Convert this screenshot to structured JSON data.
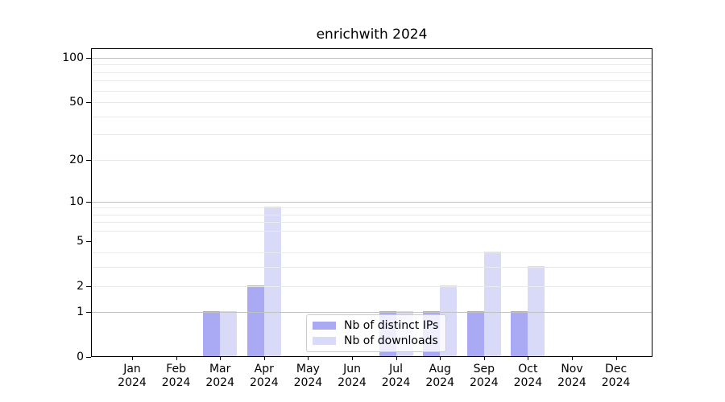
{
  "chart_data": {
    "type": "bar",
    "title": "enrichwith 2024",
    "categories": [
      "Jan 2024",
      "Feb 2024",
      "Mar 2024",
      "Apr 2024",
      "May 2024",
      "Jun 2024",
      "Jul 2024",
      "Aug 2024",
      "Sep 2024",
      "Oct 2024",
      "Nov 2024",
      "Dec 2024"
    ],
    "series": [
      {
        "name": "Nb of distinct IPs",
        "color": "#a9a9f4",
        "values": [
          0,
          0,
          1,
          2,
          0,
          0,
          1,
          1,
          1,
          1,
          0,
          0
        ]
      },
      {
        "name": "Nb of downloads",
        "color": "#d9d9f8",
        "values": [
          0,
          0,
          1,
          9,
          0,
          0,
          1,
          2,
          4,
          3,
          0,
          0
        ]
      }
    ],
    "xlabel": "",
    "ylabel": "",
    "yscale": "log1p",
    "ylim": [
      0,
      116
    ],
    "yticks": [
      0,
      1,
      2,
      5,
      10,
      20,
      50,
      100
    ],
    "yticks_major_grid": [
      1,
      10,
      100
    ],
    "yticks_minor_grid": [
      2,
      3,
      4,
      6,
      7,
      8,
      9,
      20,
      30,
      40,
      50,
      60,
      70,
      80,
      90
    ],
    "grid": "both",
    "legend_position": "lower-center-inside"
  },
  "colors": {
    "major_grid": "#c2c2c2",
    "minor_grid": "#eaeaea",
    "spine": "#000000",
    "background": "#ffffff"
  }
}
